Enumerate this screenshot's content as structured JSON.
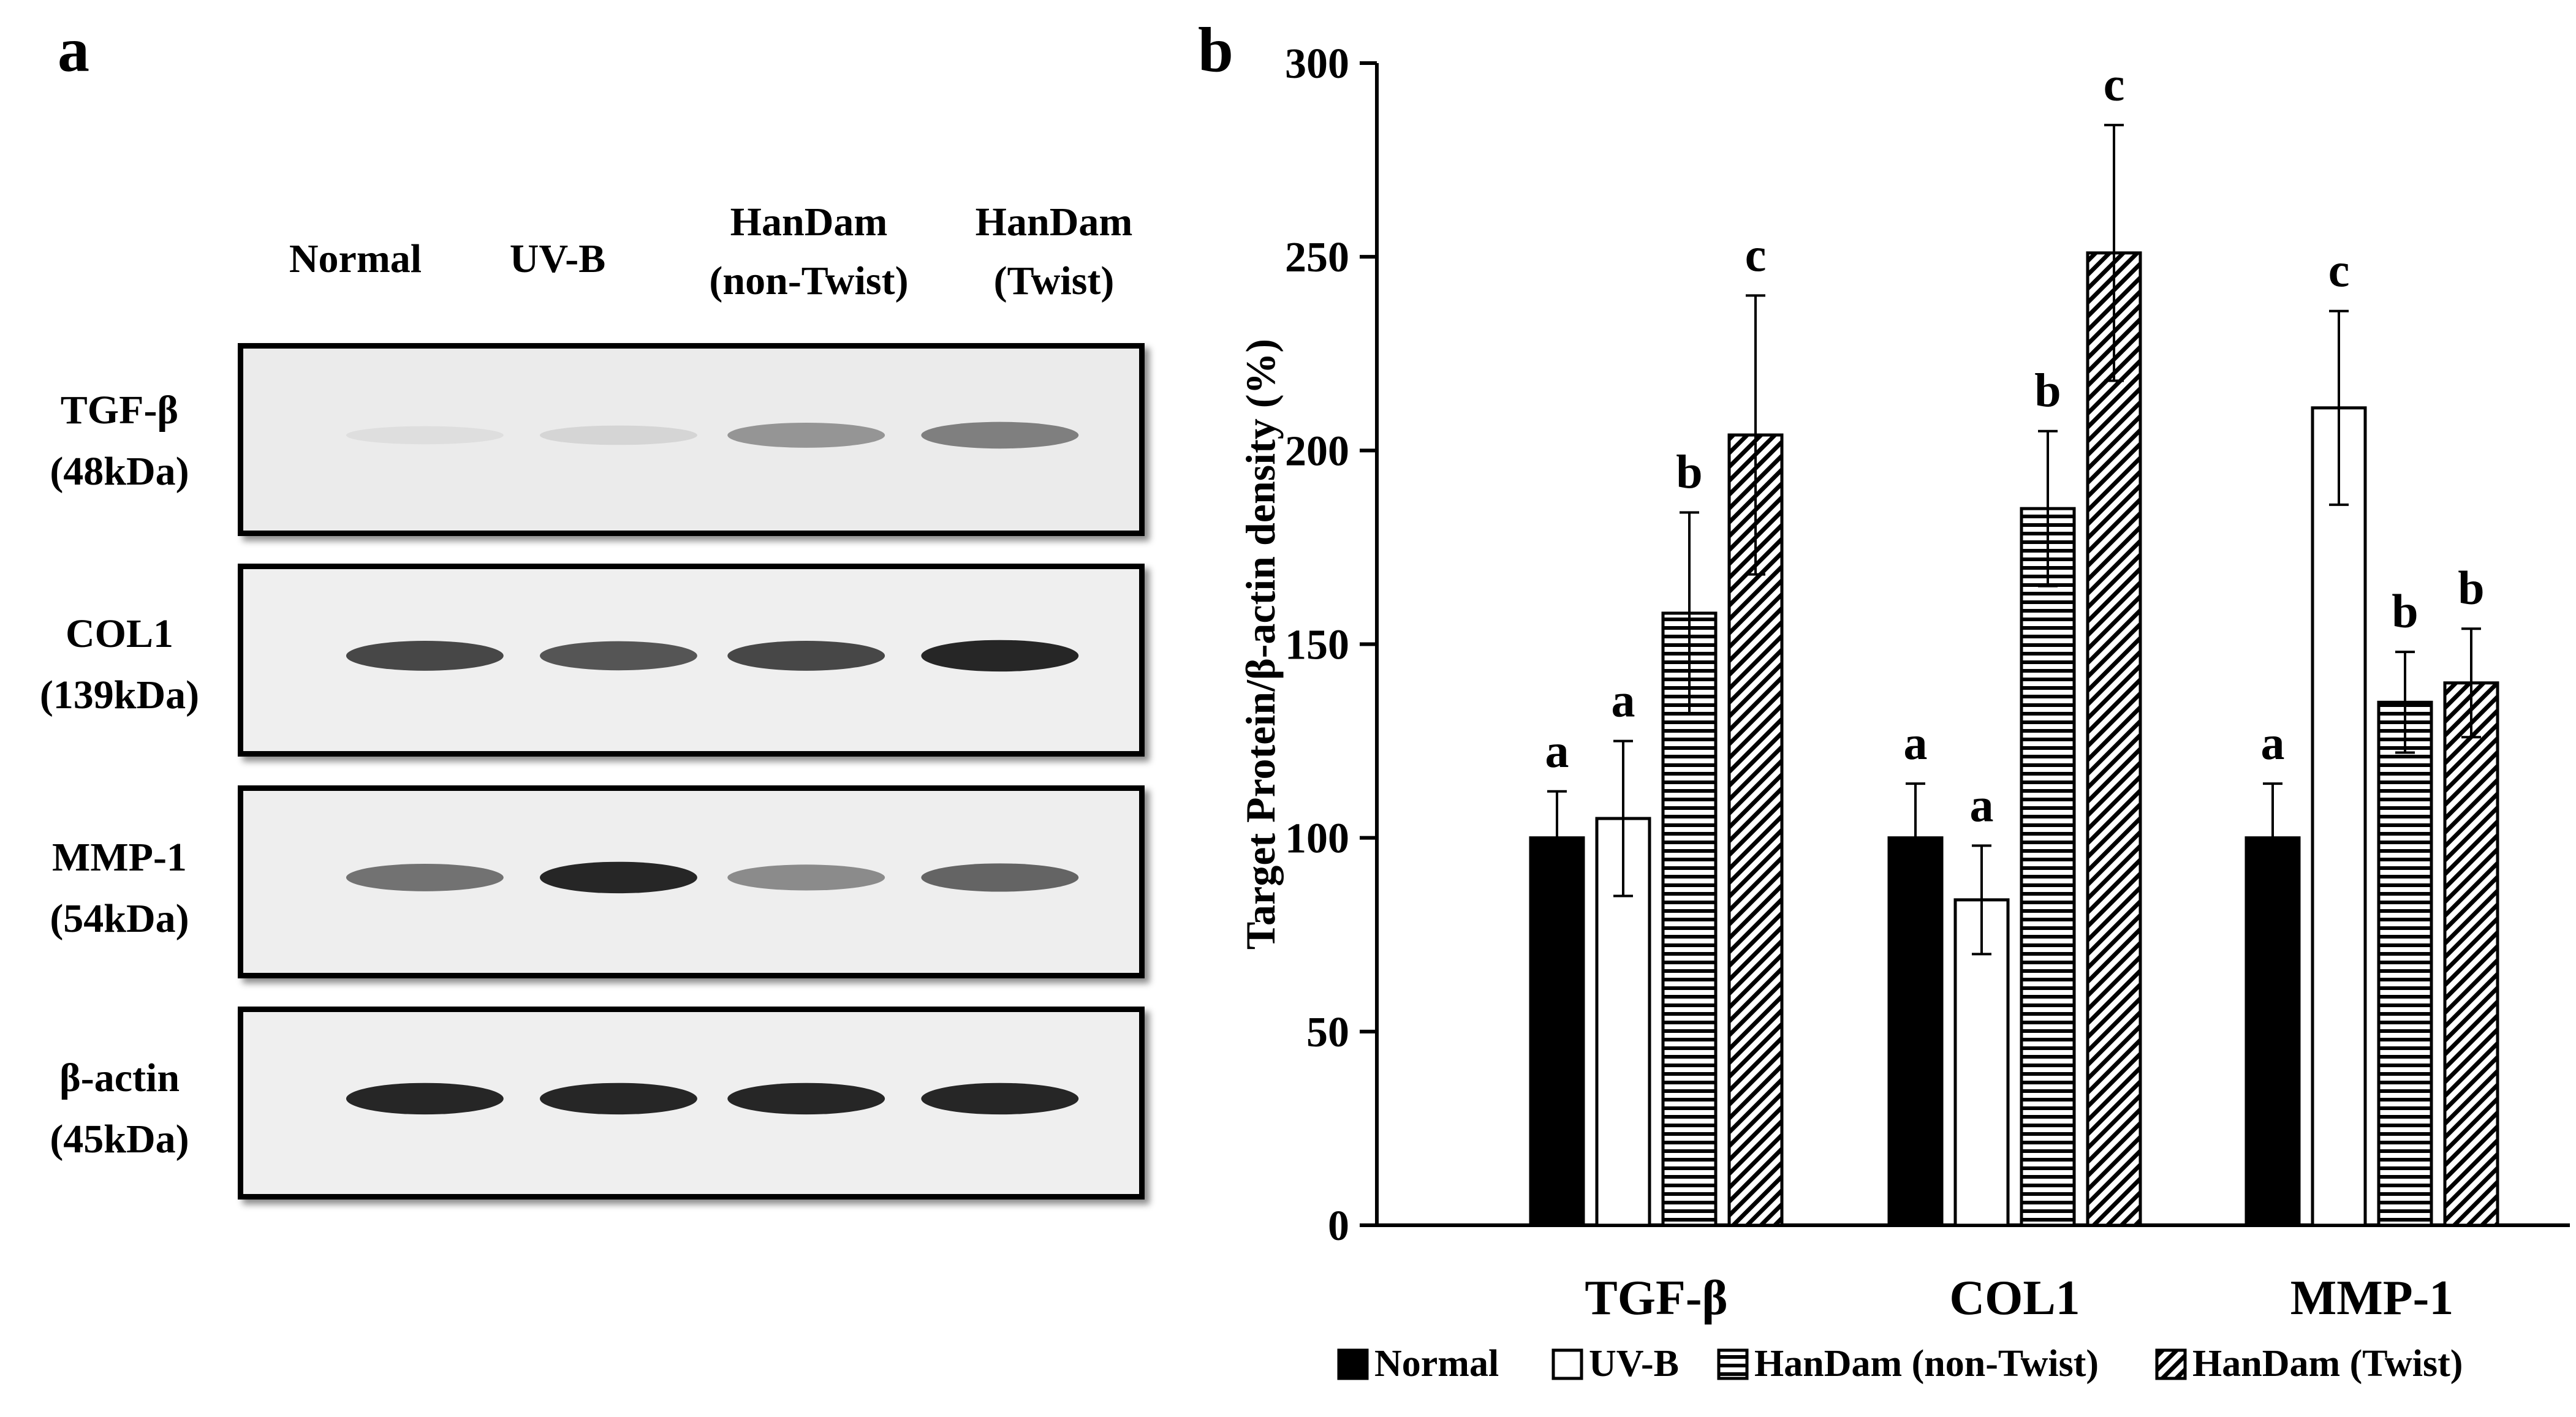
{
  "panel_a": {
    "letter": "a",
    "lanes": [
      "Normal",
      "UV-B",
      "HanDam\n(non-Twist)",
      "HanDam\n(Twist)"
    ],
    "rows": [
      {
        "label": "TGF-β\n(48kDa)",
        "band_intensity": [
          0.12,
          0.2,
          0.55,
          0.65
        ]
      },
      {
        "label": "COL1\n(139kDa)",
        "band_intensity": [
          0.85,
          0.8,
          0.85,
          0.95
        ]
      },
      {
        "label": "MMP-1\n(54kDa)",
        "band_intensity": [
          0.7,
          0.95,
          0.6,
          0.75
        ]
      },
      {
        "label": "β-actin\n(45kDa)",
        "band_intensity": [
          0.95,
          0.95,
          0.95,
          0.95
        ]
      }
    ]
  },
  "panel_b": {
    "letter": "b",
    "legend": [
      {
        "label": "Normal",
        "pattern": "solid"
      },
      {
        "label": "UV-B",
        "pattern": "open"
      },
      {
        "label": "HanDam (non-Twist)",
        "pattern": "horizontal"
      },
      {
        "label": "HanDam (Twist)",
        "pattern": "diagonal"
      }
    ]
  },
  "chart_data": {
    "type": "bar",
    "categories": [
      "TGF-β",
      "COL1",
      "MMP-1"
    ],
    "ylabel": "Target Protein/β-actin density (%)",
    "xlabel": "",
    "ylim": [
      0,
      300
    ],
    "yticks": [
      0,
      50,
      100,
      150,
      200,
      250,
      300
    ],
    "grid": false,
    "legend_position": "bottom",
    "series": [
      {
        "name": "Normal",
        "values": [
          100,
          100,
          100
        ],
        "errors": [
          12,
          14,
          14
        ],
        "significance": [
          "a",
          "a",
          "a"
        ]
      },
      {
        "name": "UV-B",
        "values": [
          105,
          84,
          211
        ],
        "errors": [
          20,
          14,
          25
        ],
        "significance": [
          "a",
          "a",
          "c"
        ]
      },
      {
        "name": "HanDam (non-Twist)",
        "values": [
          158,
          185,
          135
        ],
        "errors": [
          26,
          20,
          13
        ],
        "significance": [
          "b",
          "b",
          "b"
        ]
      },
      {
        "name": "HanDam (Twist)",
        "values": [
          204,
          251,
          140
        ],
        "errors": [
          36,
          33,
          14
        ],
        "significance": [
          "c",
          "c",
          "b"
        ]
      }
    ]
  }
}
